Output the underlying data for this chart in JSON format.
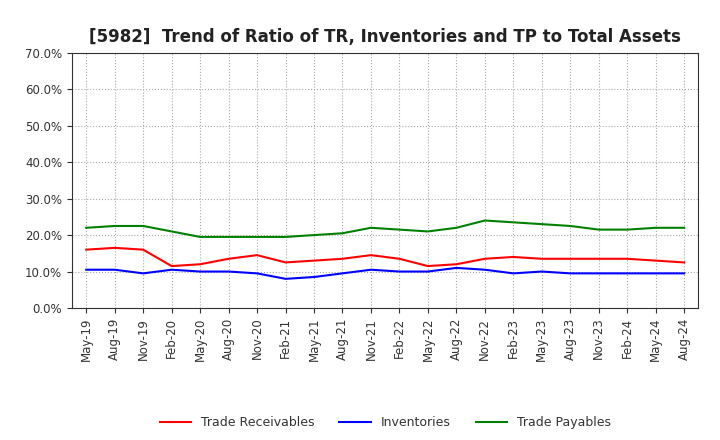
{
  "title": "[5982]  Trend of Ratio of TR, Inventories and TP to Total Assets",
  "x_labels": [
    "May-19",
    "Aug-19",
    "Nov-19",
    "Feb-20",
    "May-20",
    "Aug-20",
    "Nov-20",
    "Feb-21",
    "May-21",
    "Aug-21",
    "Nov-21",
    "Feb-22",
    "May-22",
    "Aug-22",
    "Nov-22",
    "Feb-23",
    "May-23",
    "Aug-23",
    "Nov-23",
    "Feb-24",
    "May-24",
    "Aug-24"
  ],
  "trade_receivables": [
    16.0,
    16.5,
    16.0,
    11.5,
    12.0,
    13.5,
    14.5,
    12.5,
    13.0,
    13.5,
    14.5,
    13.5,
    11.5,
    12.0,
    13.5,
    14.0,
    13.5,
    13.5,
    13.5,
    13.5,
    13.0,
    12.5
  ],
  "inventories": [
    10.5,
    10.5,
    9.5,
    10.5,
    10.0,
    10.0,
    9.5,
    8.0,
    8.5,
    9.5,
    10.5,
    10.0,
    10.0,
    11.0,
    10.5,
    9.5,
    10.0,
    9.5,
    9.5,
    9.5,
    9.5,
    9.5
  ],
  "trade_payables": [
    22.0,
    22.5,
    22.5,
    21.0,
    19.5,
    19.5,
    19.5,
    19.5,
    20.0,
    20.5,
    22.0,
    21.5,
    21.0,
    22.0,
    24.0,
    23.5,
    23.0,
    22.5,
    21.5,
    21.5,
    22.0,
    22.0
  ],
  "tr_color": "#FF0000",
  "inv_color": "#0000FF",
  "tp_color": "#008000",
  "ylim": [
    0,
    70
  ],
  "yticks": [
    0,
    10,
    20,
    30,
    40,
    50,
    60,
    70
  ],
  "legend_labels": [
    "Trade Receivables",
    "Inventories",
    "Trade Payables"
  ],
  "background_color": "#FFFFFF",
  "grid_color": "#AAAAAA",
  "title_fontsize": 12,
  "tick_fontsize": 8.5,
  "legend_fontsize": 9
}
